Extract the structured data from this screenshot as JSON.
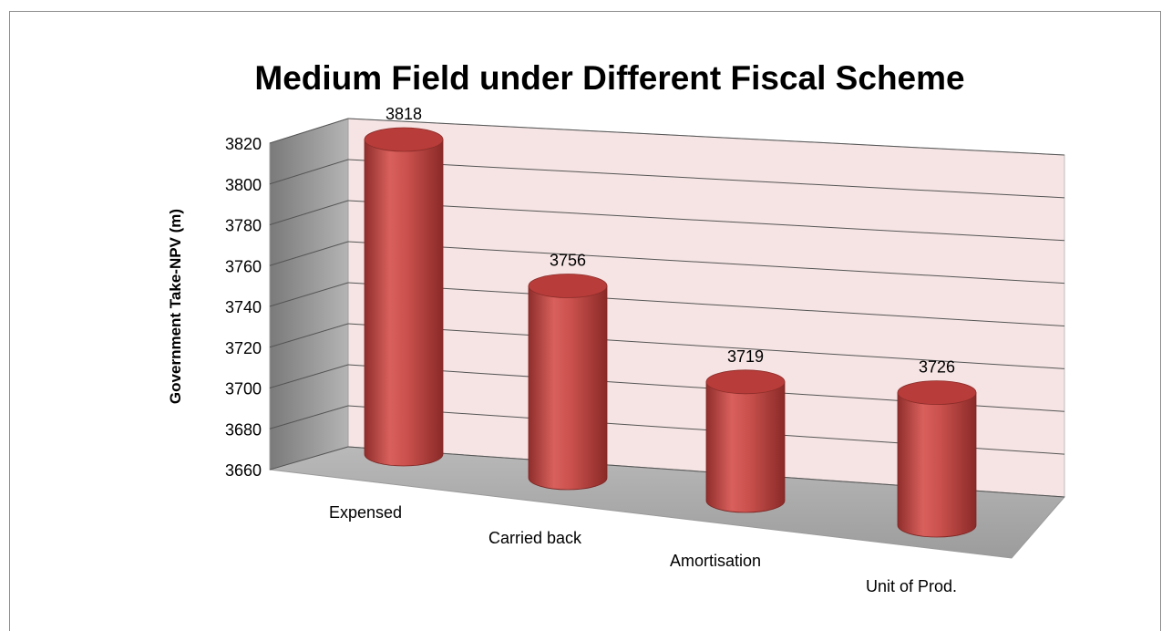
{
  "chart_data": {
    "type": "bar",
    "style": "3d-cylinder",
    "title": "Medium Field under Different Fiscal Scheme",
    "ylabel": "Government Take-NPV (m)",
    "xlabel": "",
    "categories": [
      "Expensed",
      "Carried back",
      "Amortisation",
      "Unit of Prod."
    ],
    "values": [
      3818,
      3756,
      3719,
      3726
    ],
    "data_labels": [
      "3818",
      "3756",
      "3719",
      "3726"
    ],
    "yticks": [
      "3660",
      "3680",
      "3700",
      "3720",
      "3740",
      "3760",
      "3780",
      "3800",
      "3820"
    ],
    "ylim": [
      3660,
      3820
    ],
    "grid": true,
    "legend": "none",
    "colors": {
      "bar": "#c0504d",
      "bar_top": "#b83c39",
      "back_wall": "#f6e4e4",
      "side_wall": "#8e8e8e",
      "floor": "#a7a7a7"
    }
  }
}
